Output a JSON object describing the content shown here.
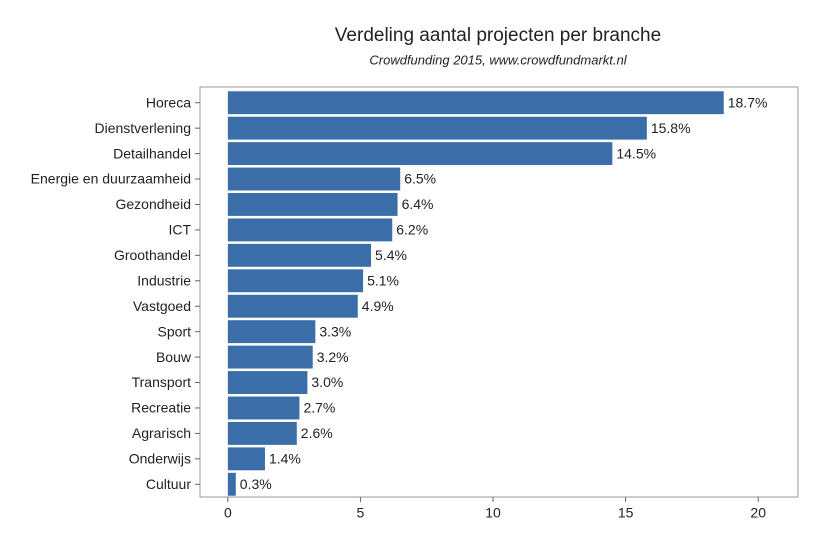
{
  "chart_data": {
    "type": "barh",
    "title": "Verdeling aantal projecten per branche",
    "subtitle": "Crowdfunding 2015, www.crowdfundmarkt.nl",
    "categories": [
      "Horeca",
      "Dienstverlening",
      "Detailhandel",
      "Energie en duurzaamheid",
      "Gezondheid",
      "ICT",
      "Groothandel",
      "Industrie",
      "Vastgoed",
      "Sport",
      "Bouw",
      "Transport",
      "Recreatie",
      "Agrarisch",
      "Onderwijs",
      "Cultuur"
    ],
    "values": [
      18.7,
      15.8,
      14.5,
      6.5,
      6.4,
      6.2,
      5.4,
      5.1,
      4.9,
      3.3,
      3.2,
      3.0,
      2.7,
      2.6,
      1.4,
      0.3
    ],
    "value_labels": [
      "18.7%",
      "15.8%",
      "14.5%",
      "6.5%",
      "6.4%",
      "6.2%",
      "5.4%",
      "5.1%",
      "4.9%",
      "3.3%",
      "3.2%",
      "3.0%",
      "2.7%",
      "2.6%",
      "1.4%",
      "0.3%"
    ],
    "color": "#3b6ea8",
    "xlim": [
      -1.05,
      21.5
    ],
    "xticks": [
      0,
      5,
      10,
      15,
      20
    ]
  }
}
